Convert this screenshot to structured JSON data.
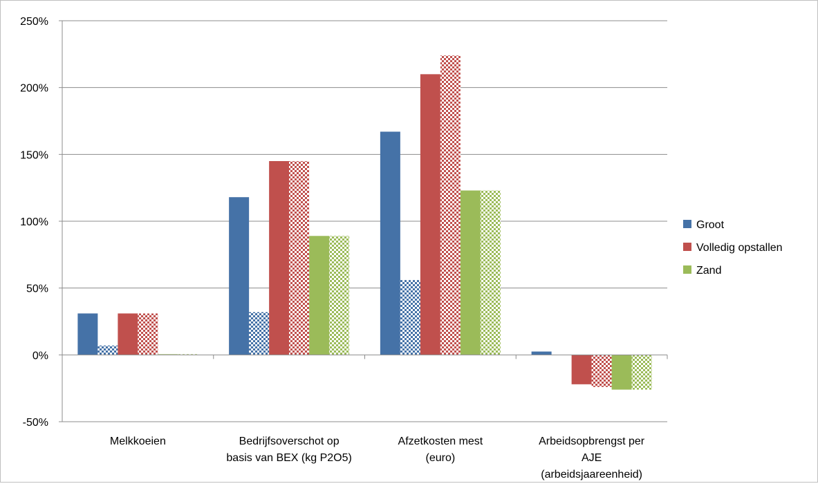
{
  "chart_data": {
    "type": "bar",
    "title": "",
    "xlabel": "",
    "ylabel": "",
    "categories": [
      [
        "Melkkoeien"
      ],
      [
        "Bedrijfsoverschot op",
        "basis van BEX (kg P2O5)"
      ],
      [
        "Afzetkosten mest",
        "(euro)"
      ],
      [
        "Arbeidsopbrengst per",
        "AJE",
        "(arbeidsjaareenheid)"
      ]
    ],
    "ylim": [
      -50,
      250
    ],
    "y_ticks": [
      -50,
      0,
      50,
      100,
      150,
      200,
      250
    ],
    "y_tick_labels": [
      "-50%",
      "0%",
      "50%",
      "100%",
      "150%",
      "200%",
      "250%"
    ],
    "y_unit": "%",
    "grid": true,
    "legend_position": "right",
    "series": [
      {
        "name": "Groot",
        "color": "#4572a7",
        "pattern": "solid",
        "values": [
          31,
          118,
          167,
          2.5
        ]
      },
      {
        "name": "",
        "color": "#4572a7",
        "pattern": "checkered",
        "values": [
          7,
          32,
          56,
          0
        ]
      },
      {
        "name": "Volledig opstallen",
        "color": "#c0504d",
        "pattern": "solid",
        "values": [
          31,
          145,
          210,
          -22
        ]
      },
      {
        "name": "",
        "color": "#c0504d",
        "pattern": "checkered",
        "values": [
          31,
          145,
          224,
          -24
        ]
      },
      {
        "name": "Zand",
        "color": "#9bbb59",
        "pattern": "solid",
        "values": [
          0.5,
          89,
          123,
          -26
        ]
      },
      {
        "name": "",
        "color": "#9bbb59",
        "pattern": "checkered",
        "values": [
          0.5,
          89,
          123,
          -26
        ]
      }
    ],
    "legend": [
      {
        "label": "Groot",
        "color": "#4572a7"
      },
      {
        "label": "Volledig opstallen",
        "color": "#c0504d"
      },
      {
        "label": "Zand",
        "color": "#9bbb59"
      }
    ]
  }
}
